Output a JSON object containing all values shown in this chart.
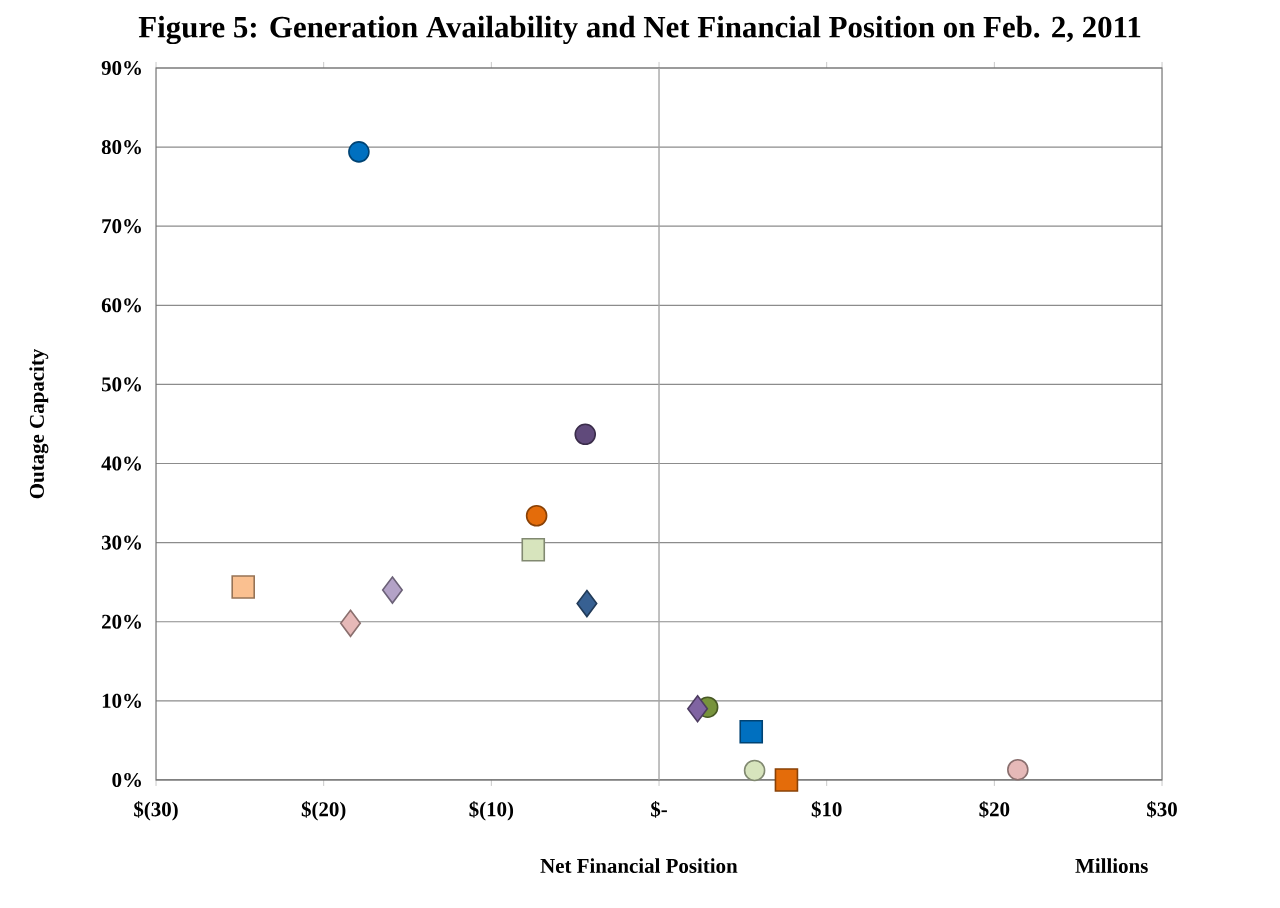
{
  "chart_data": {
    "type": "scatter",
    "title": "Figure 5:  Generation Availability and Net Financial Position on Feb. 2, 2011",
    "xlabel": "Net Financial Position",
    "ylabel": "Outage Capacity",
    "annotations": [
      "Millions"
    ],
    "xlim": [
      -30,
      30
    ],
    "ylim": [
      0,
      90
    ],
    "xticks": [
      {
        "value": -30,
        "label": "$(30)"
      },
      {
        "value": -20,
        "label": "$(20)"
      },
      {
        "value": -10,
        "label": "$(10)"
      },
      {
        "value": 0,
        "label": "$-"
      },
      {
        "value": 10,
        "label": "$10"
      },
      {
        "value": 20,
        "label": "$20"
      },
      {
        "value": 30,
        "label": "$30"
      }
    ],
    "yticks": [
      {
        "value": 0,
        "label": "0%"
      },
      {
        "value": 10,
        "label": "10%"
      },
      {
        "value": 20,
        "label": "20%"
      },
      {
        "value": 30,
        "label": "30%"
      },
      {
        "value": 40,
        "label": "40%"
      },
      {
        "value": 50,
        "label": "50%"
      },
      {
        "value": 60,
        "label": "60%"
      },
      {
        "value": 70,
        "label": "70%"
      },
      {
        "value": 80,
        "label": "80%"
      },
      {
        "value": 90,
        "label": "90%"
      }
    ],
    "grid": "y",
    "legend": false,
    "ref_lines": [
      {
        "axis": "x",
        "value": 0,
        "color": "#a6a6a6"
      }
    ],
    "series": [
      {
        "color": "#0070c0",
        "marker": "circle",
        "x": [
          -17.9
        ],
        "values": [
          79.4
        ]
      },
      {
        "color": "#604a7b",
        "marker": "circle",
        "x": [
          -4.4
        ],
        "values": [
          43.7
        ]
      },
      {
        "color": "#e46c0a",
        "marker": "circle",
        "x": [
          -7.3
        ],
        "values": [
          33.4
        ]
      },
      {
        "color": "#d7e4bd",
        "marker": "square",
        "x": [
          -7.5
        ],
        "values": [
          29.1
        ]
      },
      {
        "color": "#376092",
        "marker": "diamond",
        "x": [
          -4.3
        ],
        "values": [
          22.3
        ]
      },
      {
        "color": "#fac090",
        "marker": "square",
        "x": [
          -24.8
        ],
        "values": [
          24.4
        ]
      },
      {
        "color": "#b3a2c7",
        "marker": "diamond",
        "x": [
          -15.9
        ],
        "values": [
          24.0
        ]
      },
      {
        "color": "#e6b9b8",
        "marker": "diamond",
        "x": [
          -18.4
        ],
        "values": [
          19.8
        ]
      },
      {
        "color": "#77933c",
        "marker": "circle",
        "x": [
          2.9
        ],
        "values": [
          9.2
        ]
      },
      {
        "color": "#8064a2",
        "marker": "diamond",
        "x": [
          2.3
        ],
        "values": [
          9.0
        ]
      },
      {
        "color": "#0070c0",
        "marker": "square",
        "x": [
          5.5
        ],
        "values": [
          6.1
        ]
      },
      {
        "color": "#d7e4bd",
        "marker": "circle",
        "x": [
          5.7
        ],
        "values": [
          1.2
        ]
      },
      {
        "color": "#e46c0a",
        "marker": "square",
        "x": [
          7.6
        ],
        "values": [
          0
        ]
      },
      {
        "color": "#e6b9b8",
        "marker": "circle",
        "x": [
          21.4
        ],
        "values": [
          1.3
        ]
      }
    ]
  }
}
